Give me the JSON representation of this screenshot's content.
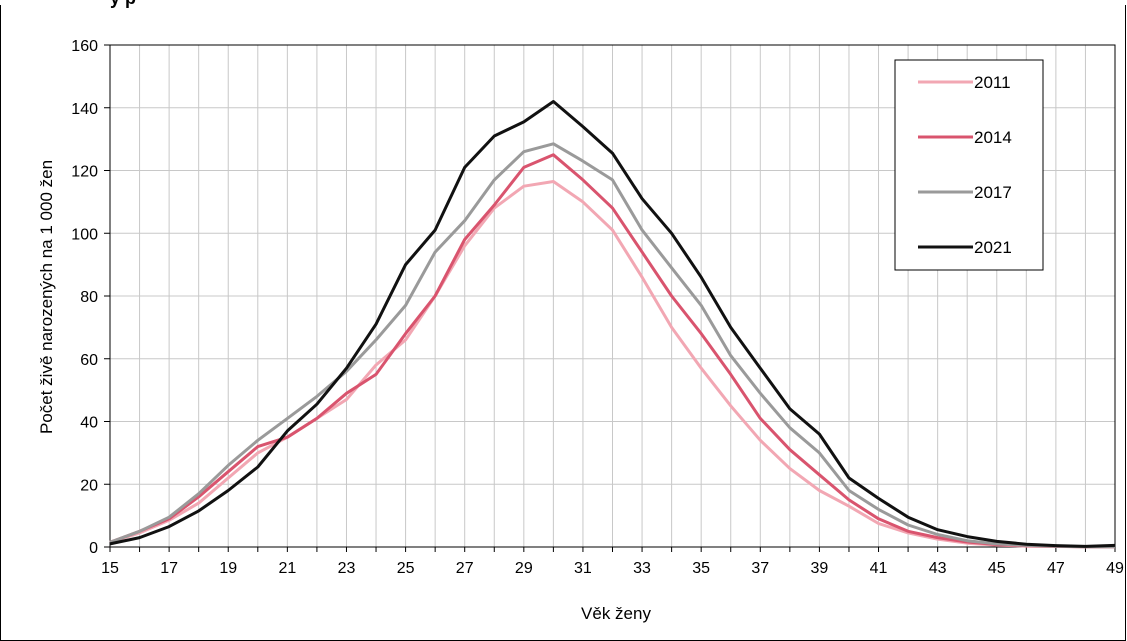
{
  "chart_data": {
    "type": "line",
    "title": "y p",
    "xlabel": "Věk ženy",
    "ylabel": "Počet živě narozených na 1 000 žen",
    "x": [
      15,
      16,
      17,
      18,
      19,
      20,
      21,
      22,
      23,
      24,
      25,
      26,
      27,
      28,
      29,
      30,
      31,
      32,
      33,
      34,
      35,
      36,
      37,
      38,
      39,
      40,
      41,
      42,
      43,
      44,
      45,
      46,
      47,
      48,
      49
    ],
    "xlim": [
      15,
      49
    ],
    "ylim": [
      0,
      160
    ],
    "x_ticks": [
      15,
      17,
      19,
      21,
      23,
      25,
      27,
      29,
      31,
      33,
      35,
      37,
      39,
      41,
      43,
      45,
      47,
      49
    ],
    "y_ticks": [
      0,
      20,
      40,
      60,
      80,
      100,
      120,
      140,
      160
    ],
    "grid": true,
    "legend_position": "top-right",
    "series": [
      {
        "name": "2011",
        "color": "#f2a7b3",
        "values": [
          1.5,
          4.5,
          8.5,
          14,
          22,
          30,
          35,
          41,
          47,
          58,
          66,
          80,
          96,
          108,
          115,
          116.5,
          110,
          101,
          86,
          70,
          57,
          45,
          34,
          25,
          18,
          13,
          7.5,
          4.5,
          2.5,
          1.2,
          0.6,
          0.3,
          0.15,
          0.1,
          0.05
        ]
      },
      {
        "name": "2014",
        "color": "#d9546e",
        "values": [
          1.5,
          5,
          9,
          16,
          24,
          32,
          35,
          41,
          49,
          55,
          68,
          80,
          98,
          109,
          121,
          125,
          117,
          108,
          94,
          80,
          68,
          55,
          41,
          31,
          23,
          15,
          9,
          5,
          3,
          1.6,
          0.8,
          0.4,
          0.2,
          0.1,
          0.05
        ]
      },
      {
        "name": "2017",
        "color": "#9a9a9a",
        "values": [
          1.5,
          5,
          9.5,
          17,
          26,
          34,
          41,
          48,
          56,
          66,
          77,
          94,
          104,
          117,
          126,
          128.5,
          123,
          117,
          101,
          89,
          77,
          61,
          49,
          38,
          30,
          18,
          12,
          7,
          4,
          2,
          1,
          0.5,
          0.25,
          0.1,
          0.05
        ]
      },
      {
        "name": "2021",
        "color": "#111111",
        "values": [
          1,
          3,
          6.5,
          11.5,
          18,
          25.5,
          37,
          45.5,
          57,
          71,
          90,
          101,
          121,
          131,
          135.5,
          142,
          134,
          125.5,
          111,
          100,
          86,
          70,
          57,
          44,
          36,
          22,
          15.5,
          9.5,
          5.5,
          3.3,
          1.8,
          0.9,
          0.45,
          0.2,
          0.5
        ]
      }
    ]
  }
}
